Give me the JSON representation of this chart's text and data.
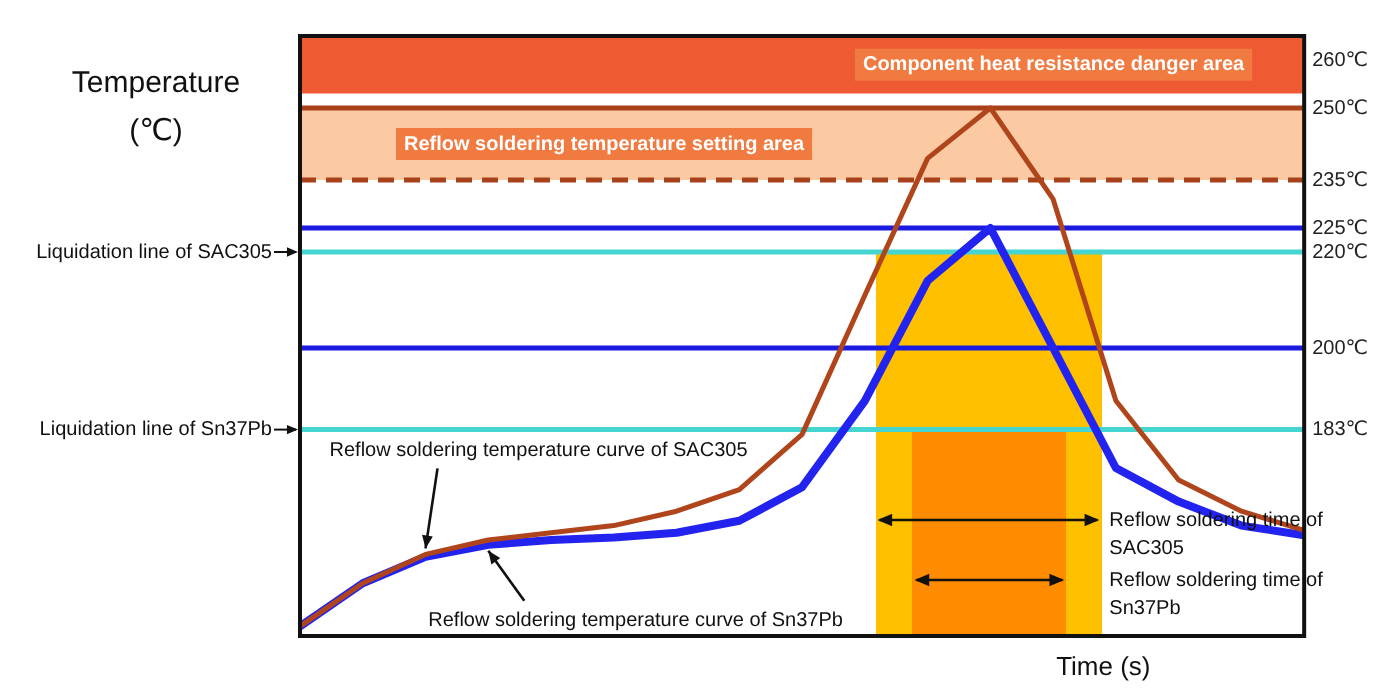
{
  "chart_data": {
    "type": "line",
    "ylabel": "Temperature (℃)",
    "xlabel": "Time (s)",
    "categories": [
      null,
      null,
      null,
      null,
      null,
      null,
      null,
      null,
      null,
      null,
      null,
      null,
      null,
      null,
      null,
      null,
      null
    ],
    "ylim": [
      140,
      265
    ],
    "yticks": [
      {
        "value": 183,
        "label": "183℃"
      },
      {
        "value": 200,
        "label": "200℃"
      },
      {
        "value": 220,
        "label": "220℃"
      },
      {
        "value": 225,
        "label": "225℃"
      },
      {
        "value": 235,
        "label": "235℃"
      },
      {
        "value": 250,
        "label": "250℃"
      },
      {
        "value": 260,
        "label": "260℃"
      }
    ],
    "tick_labels": "y",
    "grid": false,
    "legend": false,
    "marker": "none",
    "series": [
      {
        "color": "#b0451c",
        "values": [
          142,
          151,
          157,
          160,
          161.5,
          163,
          166,
          170.5,
          182,
          211,
          239.5,
          250,
          231,
          189,
          172.5,
          166,
          162
        ]
      },
      {
        "color": "#2323f0",
        "values": [
          142,
          151,
          156.5,
          159,
          160,
          160.5,
          161.5,
          164,
          171,
          189,
          214,
          225,
          200,
          175,
          168,
          163,
          161
        ]
      }
    ],
    "bands": [
      {
        "axis": "y",
        "from": 253,
        "to": 265,
        "label": "Component heat resistance danger area",
        "color": "#ee5a32"
      },
      {
        "axis": "y",
        "from": 235,
        "to": 250,
        "label": "Reflow soldering temperature setting area",
        "color": "#fbcaa2"
      }
    ],
    "ref_lines": [
      {
        "axis": "y",
        "value": 250,
        "label": null,
        "color": "#a8401a",
        "line_style": "solid"
      },
      {
        "axis": "y",
        "value": 235,
        "label": null,
        "color": "#a8401a",
        "line_style": "dashed"
      },
      {
        "axis": "y",
        "value": 225,
        "label": null,
        "color": "#1a1ae0",
        "line_style": "solid"
      },
      {
        "axis": "y",
        "value": 220,
        "label": "Liquidation line of SAC305",
        "color": "#45d5d0",
        "line_style": "solid"
      },
      {
        "axis": "y",
        "value": 200,
        "label": null,
        "color": "#1a1ae0",
        "line_style": "solid"
      },
      {
        "axis": "y",
        "value": 183,
        "label": "Liquidation line of Sn37Pb",
        "color": "#45d5d0",
        "line_style": "solid"
      }
    ],
    "annotations": [
      "Reflow soldering temperature curve of SAC305",
      "Reflow soldering temperature curve of Sn37Pb",
      "Reflow soldering time of SAC305",
      "Reflow soldering time of Sn37Pb"
    ]
  }
}
